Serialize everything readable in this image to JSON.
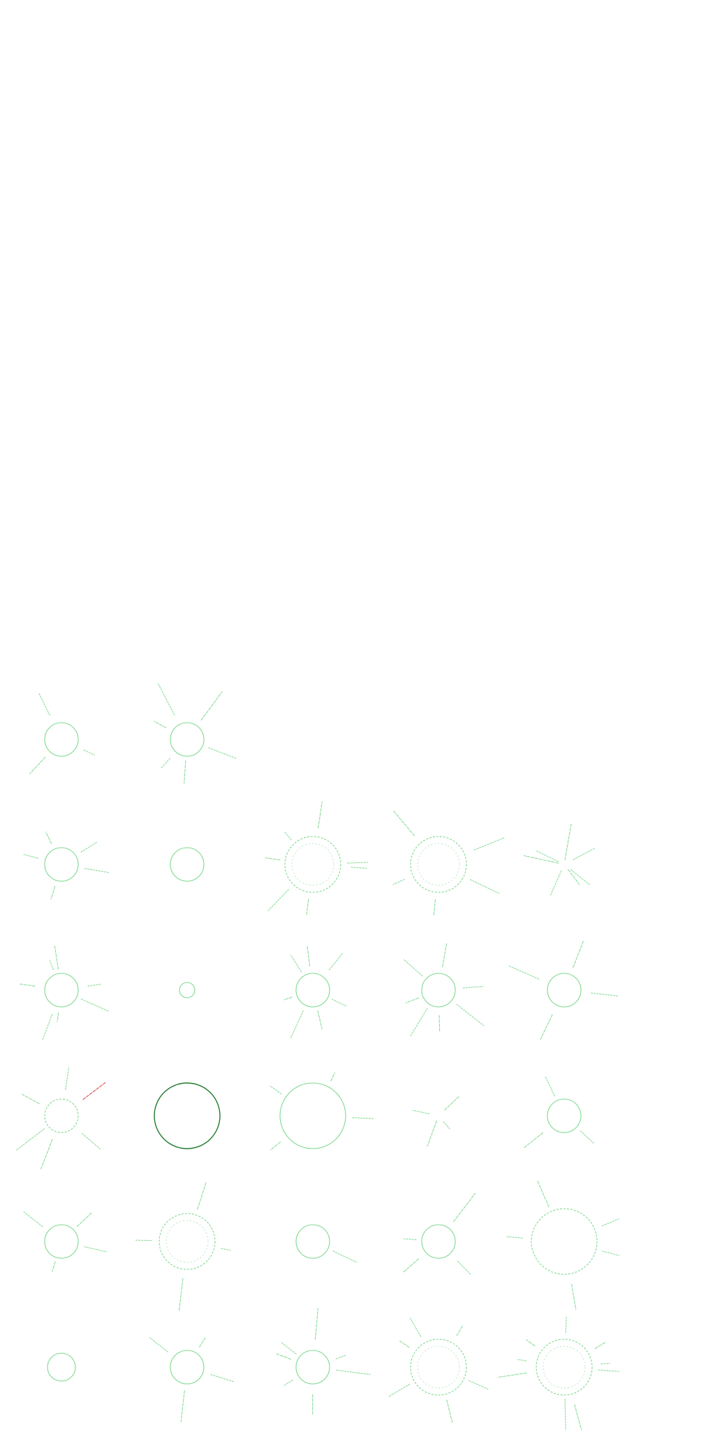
{
  "stroke_colors": {
    "light_green": "#7fd98f",
    "dark_green": "#1f7a2e",
    "red": "#d23b3b"
  },
  "icon_grid": {
    "rows": [
      [
        {
          "name": "sun-icon",
          "tone": "light",
          "dashed": false,
          "double": false,
          "rays": 3
        },
        {
          "name": "sun-icon",
          "tone": "light",
          "dashed": false,
          "double": false,
          "rays": 6
        }
      ],
      [
        {
          "name": "sun-icon",
          "tone": "light",
          "dashed": false,
          "double": false,
          "rays": 5
        },
        {
          "name": "circle-icon",
          "tone": "light",
          "dashed": false,
          "double": false,
          "rays": 0
        },
        {
          "name": "sun-icon",
          "tone": "light",
          "dashed": true,
          "double": true,
          "rays": 7
        },
        {
          "name": "sun-icon",
          "tone": "light",
          "dashed": true,
          "double": true,
          "rays": 5
        },
        {
          "name": "rays-icon",
          "tone": "light",
          "dashed": true,
          "double": false,
          "rays": 7,
          "no_circle": true
        }
      ],
      [
        {
          "name": "sun-icon",
          "tone": "light",
          "dashed": false,
          "double": false,
          "rays": 7
        },
        {
          "name": "small-circle-icon",
          "tone": "light",
          "dashed": false,
          "double": false,
          "rays": 0
        },
        {
          "name": "sun-icon",
          "tone": "light",
          "dashed": false,
          "double": false,
          "rays": 7
        },
        {
          "name": "sun-icon",
          "tone": "light",
          "dashed": false,
          "double": false,
          "rays": 7
        },
        {
          "name": "sun-icon",
          "tone": "light",
          "dashed": false,
          "double": false,
          "rays": 4
        }
      ],
      [
        {
          "name": "sun-icon",
          "tone": "light",
          "dashed": true,
          "double": false,
          "rays": 6,
          "accent": "red"
        },
        {
          "name": "large-circle-icon",
          "tone": "dark",
          "dashed": false,
          "double": false,
          "rays": 0
        },
        {
          "name": "sun-icon",
          "tone": "light",
          "dashed": false,
          "double": false,
          "rays": 4,
          "big": true
        },
        {
          "name": "rays-icon",
          "tone": "light",
          "dashed": true,
          "double": false,
          "rays": 4,
          "no_circle": true
        },
        {
          "name": "sun-icon",
          "tone": "light",
          "dashed": false,
          "double": false,
          "rays": 3
        }
      ],
      [
        {
          "name": "sun-icon",
          "tone": "light",
          "dashed": false,
          "double": false,
          "rays": 4
        },
        {
          "name": "sun-icon",
          "tone": "light",
          "dashed": true,
          "double": true,
          "rays": 4
        },
        {
          "name": "sun-icon",
          "tone": "light",
          "dashed": false,
          "double": false,
          "rays": 1
        },
        {
          "name": "sun-icon",
          "tone": "light",
          "dashed": false,
          "double": false,
          "rays": 4
        },
        {
          "name": "sun-icon",
          "tone": "light",
          "dashed": true,
          "double": false,
          "rays": 5,
          "big": true
        }
      ],
      [
        {
          "name": "small-circle-icon",
          "tone": "light",
          "dashed": false,
          "double": false,
          "rays": 0
        },
        {
          "name": "sun-icon",
          "tone": "light",
          "dashed": false,
          "double": false,
          "rays": 4
        },
        {
          "name": "sun-icon",
          "tone": "light",
          "dashed": false,
          "double": false,
          "rays": 7
        },
        {
          "name": "sun-icon",
          "tone": "light",
          "dashed": true,
          "double": true,
          "rays": 6
        },
        {
          "name": "sun-icon",
          "tone": "light",
          "dashed": true,
          "double": true,
          "rays": 9
        }
      ]
    ]
  }
}
